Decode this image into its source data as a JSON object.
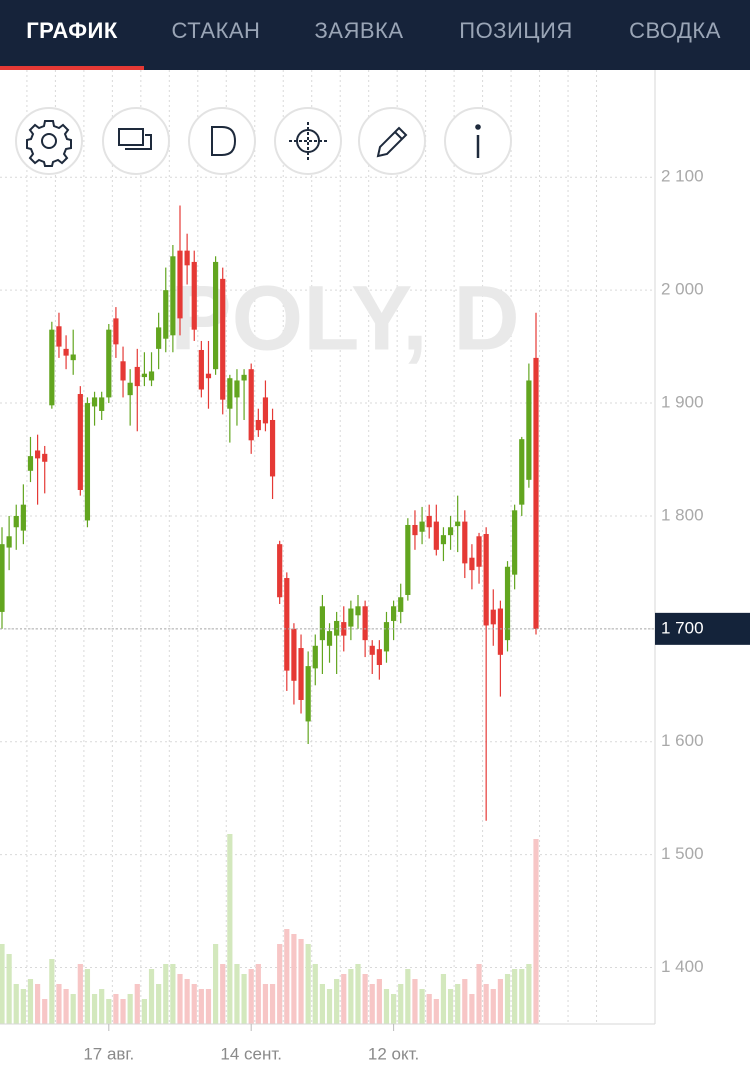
{
  "tabs": [
    {
      "label": "ГРАФИК",
      "active": true
    },
    {
      "label": "СТАКАН",
      "active": false
    },
    {
      "label": "ЗАЯВКА",
      "active": false
    },
    {
      "label": "ПОЗИЦИЯ",
      "active": false
    },
    {
      "label": "СВОДКА",
      "active": false
    }
  ],
  "chart_data": {
    "type": "candlestick",
    "watermark": "POLY, D",
    "categories": [
      null,
      null,
      null,
      null,
      null,
      null,
      null,
      null,
      null,
      null,
      null,
      null,
      null,
      null,
      null,
      "17 авг.",
      null,
      null,
      null,
      null,
      null,
      null,
      null,
      null,
      null,
      null,
      null,
      null,
      null,
      null,
      null,
      null,
      null,
      null,
      null,
      "14 сент.",
      null,
      null,
      null,
      null,
      null,
      null,
      null,
      null,
      null,
      null,
      null,
      null,
      null,
      null,
      null,
      null,
      null,
      null,
      null,
      "12 окт.",
      null,
      null,
      null,
      null,
      null,
      null,
      null,
      null,
      null,
      null,
      null,
      null,
      null,
      null,
      null,
      null,
      null,
      null,
      null,
      null
    ],
    "open": [
      1715,
      1772,
      1790,
      1787,
      1840,
      1858,
      1855,
      1898,
      1968,
      1948,
      1938,
      1908,
      1796,
      1897,
      1893,
      1905,
      1975,
      1937,
      1907,
      1932,
      1923,
      1920,
      1948,
      1957,
      1960,
      2035,
      2035,
      2025,
      1947,
      1926,
      1930,
      2010,
      1895,
      1905,
      1920,
      1930,
      1885,
      1905,
      1885,
      1775,
      1745,
      1700,
      1683,
      1618,
      1665,
      1690,
      1685,
      1694,
      1706,
      1702,
      1712,
      1720,
      1685,
      1682,
      1680,
      1707,
      1715,
      1730,
      1792,
      1786,
      1800,
      1795,
      1775,
      1783,
      1791,
      1795,
      1763,
      1782,
      1784,
      1717,
      1718,
      1690,
      1748,
      1810,
      1832,
      1940
    ],
    "high": [
      1790,
      1800,
      1810,
      1828,
      1870,
      1872,
      1862,
      1972,
      1980,
      1960,
      1965,
      1915,
      1905,
      1910,
      1910,
      1970,
      1985,
      1950,
      1930,
      1948,
      1945,
      1945,
      1980,
      2020,
      2040,
      2075,
      2050,
      2035,
      1955,
      1955,
      2030,
      2020,
      1925,
      1930,
      1930,
      1935,
      1895,
      1920,
      1895,
      1778,
      1750,
      1705,
      1695,
      1680,
      1695,
      1730,
      1705,
      1715,
      1720,
      1725,
      1730,
      1725,
      1690,
      1690,
      1715,
      1725,
      1740,
      1798,
      1805,
      1808,
      1810,
      1810,
      1790,
      1800,
      1818,
      1805,
      1775,
      1785,
      1790,
      1735,
      1725,
      1760,
      1810,
      1870,
      1935,
      1980
    ],
    "low": [
      1700,
      1752,
      1770,
      1775,
      1830,
      1810,
      1820,
      1895,
      1940,
      1930,
      1925,
      1818,
      1790,
      1880,
      1885,
      1900,
      1940,
      1905,
      1880,
      1875,
      1915,
      1915,
      1930,
      1945,
      1945,
      1960,
      2005,
      1955,
      1905,
      1895,
      1925,
      1890,
      1865,
      1880,
      1885,
      1855,
      1870,
      1875,
      1815,
      1722,
      1645,
      1633,
      1625,
      1598,
      1650,
      1660,
      1670,
      1660,
      1680,
      1690,
      1700,
      1675,
      1660,
      1655,
      1670,
      1690,
      1705,
      1725,
      1770,
      1775,
      1780,
      1765,
      1760,
      1770,
      1768,
      1745,
      1735,
      1740,
      1530,
      1685,
      1640,
      1680,
      1735,
      1800,
      1825,
      1695
    ],
    "close": [
      1775,
      1782,
      1800,
      1810,
      1853,
      1851,
      1848,
      1965,
      1950,
      1942,
      1943,
      1823,
      1900,
      1905,
      1905,
      1965,
      1952,
      1920,
      1918,
      1915,
      1926,
      1928,
      1967,
      2000,
      2030,
      1975,
      2022,
      1965,
      1912,
      1922,
      2025,
      1903,
      1922,
      1920,
      1925,
      1867,
      1876,
      1882,
      1835,
      1728,
      1663,
      1654,
      1637,
      1667,
      1685,
      1720,
      1698,
      1707,
      1694,
      1718,
      1720,
      1690,
      1677,
      1668,
      1706,
      1720,
      1728,
      1792,
      1783,
      1795,
      1790,
      1770,
      1783,
      1790,
      1795,
      1758,
      1752,
      1755,
      1703,
      1704,
      1677,
      1755,
      1805,
      1868,
      1920,
      1700
    ],
    "volume": [
      80,
      70,
      40,
      35,
      45,
      40,
      25,
      65,
      40,
      35,
      30,
      60,
      55,
      30,
      35,
      25,
      30,
      25,
      30,
      40,
      25,
      55,
      40,
      60,
      60,
      50,
      45,
      40,
      35,
      35,
      80,
      60,
      190,
      60,
      50,
      55,
      60,
      40,
      40,
      80,
      95,
      90,
      85,
      80,
      60,
      40,
      35,
      45,
      50,
      55,
      60,
      50,
      40,
      45,
      35,
      30,
      40,
      55,
      45,
      35,
      30,
      25,
      50,
      35,
      40,
      45,
      30,
      60,
      40,
      35,
      45,
      50,
      55,
      55,
      60,
      185
    ],
    "up_color": "#62a51f",
    "down_color": "#e53935",
    "up_volume_color": "#d3e8bd",
    "down_volume_color": "#f7c6c6",
    "ylim": [
      1350,
      2195
    ],
    "yticks": [
      {
        "value": 1400,
        "label": "1 400"
      },
      {
        "value": 1500,
        "label": "1 500"
      },
      {
        "value": 1600,
        "label": "1 600"
      },
      {
        "value": 1700,
        "label": "1 700"
      },
      {
        "value": 1800,
        "label": "1 800"
      },
      {
        "value": 1900,
        "label": "1 900"
      },
      {
        "value": 2000,
        "label": "2 000"
      },
      {
        "value": 2100,
        "label": "2 100"
      }
    ],
    "last_price": {
      "value": 1700,
      "label": "1 700"
    },
    "grid": true
  }
}
